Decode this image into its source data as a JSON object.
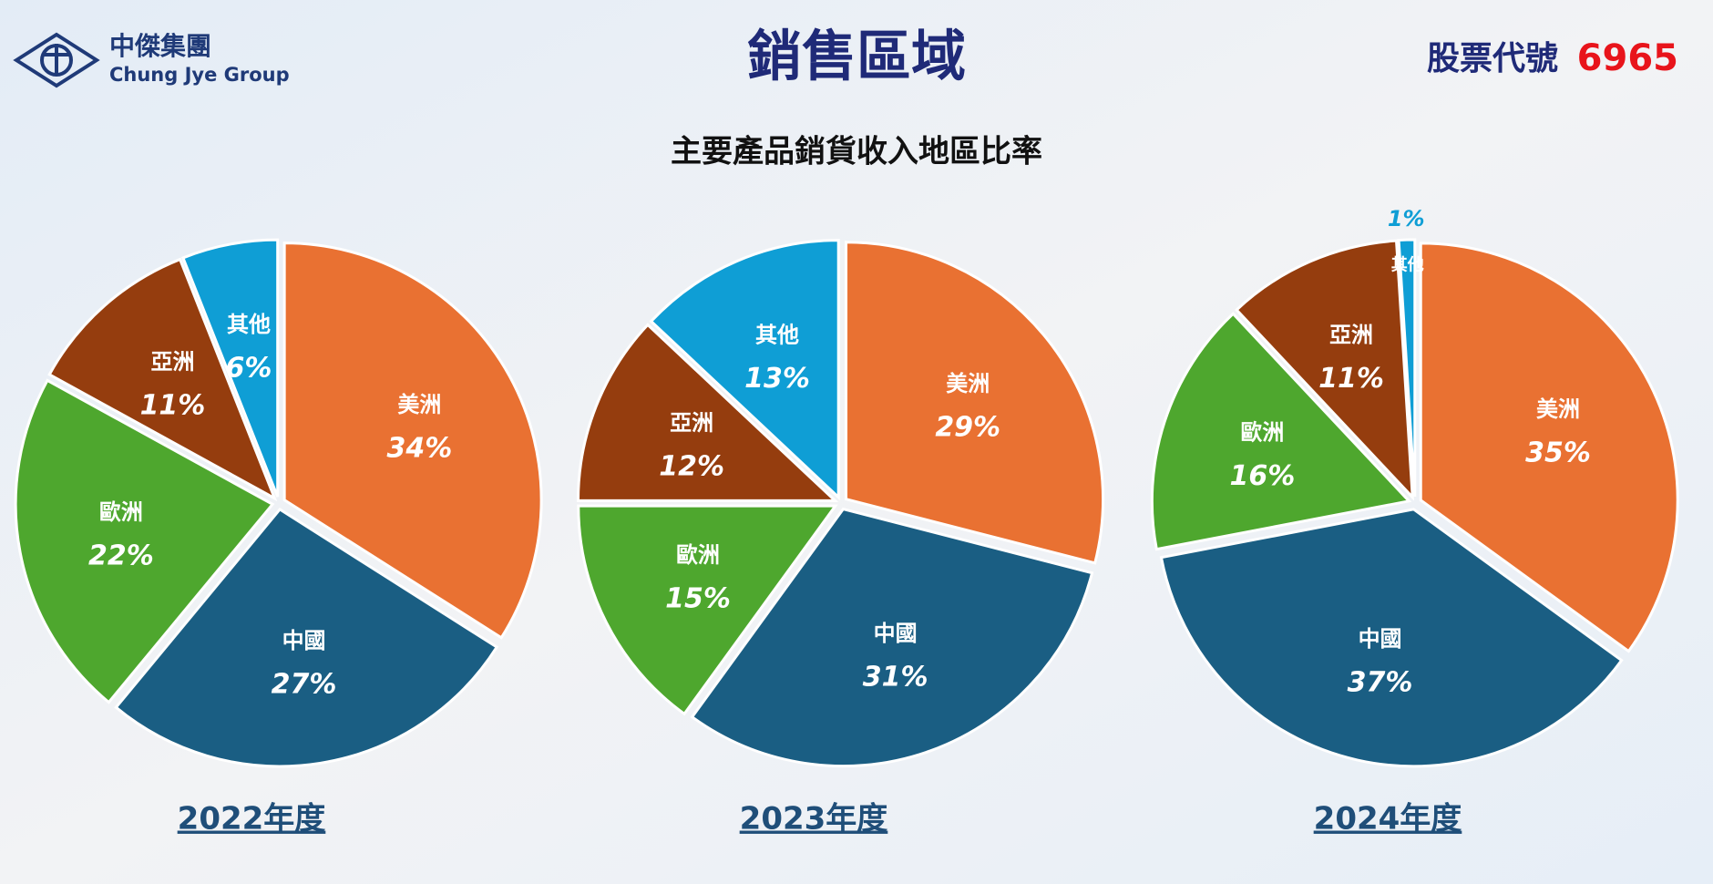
{
  "header": {
    "company_zh": "中傑集團",
    "company_en": "Chung Jye Group",
    "title": "銷售區域",
    "stock_label": "股票代號",
    "stock_code": "6965"
  },
  "subtitle": "主要產品銷貨收入地區比率",
  "chart_data": [
    {
      "type": "pie",
      "title": "2022年度",
      "categories": [
        "美洲",
        "中國",
        "歐洲",
        "亞洲",
        "其他"
      ],
      "values": [
        34,
        27,
        22,
        11,
        6
      ],
      "value_labels": [
        "34%",
        "27%",
        "22%",
        "11%",
        "6%"
      ],
      "colors": [
        "#e97132",
        "#1a5e83",
        "#4ea72e",
        "#953d0e",
        "#0f9ed5"
      ]
    },
    {
      "type": "pie",
      "title": "2023年度",
      "categories": [
        "美洲",
        "中國",
        "歐洲",
        "亞洲",
        "其他"
      ],
      "values": [
        29,
        31,
        15,
        12,
        13
      ],
      "value_labels": [
        "29%",
        "31%",
        "15%",
        "12%",
        "13%"
      ],
      "colors": [
        "#e97132",
        "#1a5e83",
        "#4ea72e",
        "#953d0e",
        "#0f9ed5"
      ]
    },
    {
      "type": "pie",
      "title": "2024年度",
      "categories": [
        "美洲",
        "中國",
        "歐洲",
        "亞洲",
        "其他"
      ],
      "values": [
        35,
        37,
        16,
        11,
        1
      ],
      "value_labels": [
        "35%",
        "37%",
        "16%",
        "11%",
        "1%"
      ],
      "colors": [
        "#e97132",
        "#1a5e83",
        "#4ea72e",
        "#953d0e",
        "#0f9ed5"
      ]
    }
  ]
}
